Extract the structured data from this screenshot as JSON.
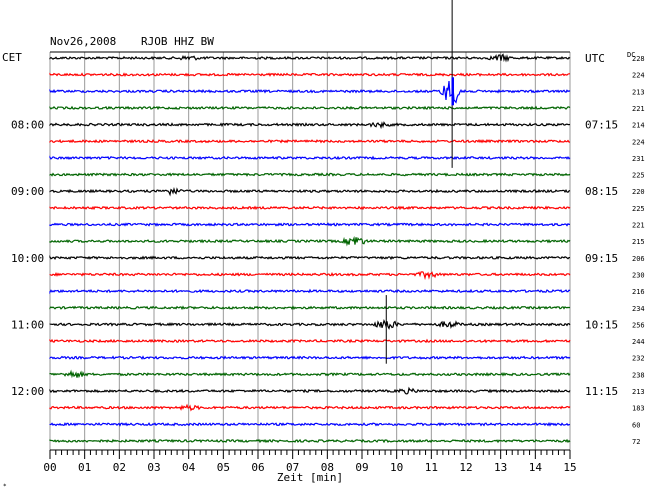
{
  "header": {
    "date": "Nov26,2008",
    "station": "RJOB HHZ BW",
    "left_tz": "CET",
    "right_tz": "UTC",
    "dc_label": "DC"
  },
  "chart_data": {
    "type": "line",
    "title": "Nov26,2008  RJOB HHZ BW",
    "xlabel": "Zeit [min]",
    "xlim": [
      0,
      15
    ],
    "x_ticks": [
      "00",
      "01",
      "02",
      "03",
      "04",
      "05",
      "06",
      "07",
      "08",
      "09",
      "10",
      "11",
      "12",
      "13",
      "14",
      "15"
    ],
    "trace_colors": [
      "#000000",
      "#ff0000",
      "#0000ff",
      "#006400"
    ],
    "grid": true,
    "left_time_labels": [
      {
        "row": 4,
        "label": "08:00"
      },
      {
        "row": 8,
        "label": "09:00"
      },
      {
        "row": 12,
        "label": "10:00"
      },
      {
        "row": 16,
        "label": "11:00"
      },
      {
        "row": 20,
        "label": "12:00"
      }
    ],
    "right_time_labels": [
      {
        "row": 0,
        "label": "UTC"
      },
      {
        "row": 4,
        "label": "07:15"
      },
      {
        "row": 8,
        "label": "08:15"
      },
      {
        "row": 12,
        "label": "09:15"
      },
      {
        "row": 16,
        "label": "10:15"
      },
      {
        "row": 20,
        "label": "11:15"
      }
    ],
    "dc_offsets": [
      "228",
      "224",
      "213",
      "221",
      "214",
      "224",
      "231",
      "225",
      "220",
      "225",
      "221",
      "215",
      "206",
      "230",
      "216",
      "234",
      "256",
      "244",
      "232",
      "238",
      "213",
      "183",
      "60",
      "72"
    ],
    "events": [
      {
        "row": 0,
        "minute": 13.0,
        "amp": 3
      },
      {
        "row": 0,
        "minute": 4.0,
        "amp": 2
      },
      {
        "row": 2,
        "minute": 11.6,
        "amp": 14,
        "spike": true
      },
      {
        "row": 4,
        "minute": 9.5,
        "amp": 2
      },
      {
        "row": 8,
        "minute": 3.5,
        "amp": 3
      },
      {
        "row": 11,
        "minute": 8.8,
        "amp": 5
      },
      {
        "row": 13,
        "minute": 10.9,
        "amp": 3
      },
      {
        "row": 16,
        "minute": 11.5,
        "amp": 3
      },
      {
        "row": 16,
        "minute": 9.7,
        "amp": 5
      },
      {
        "row": 19,
        "minute": 0.7,
        "amp": 3
      },
      {
        "row": 20,
        "minute": 10.3,
        "amp": 2
      },
      {
        "row": 21,
        "minute": 4.0,
        "amp": 2
      }
    ]
  }
}
